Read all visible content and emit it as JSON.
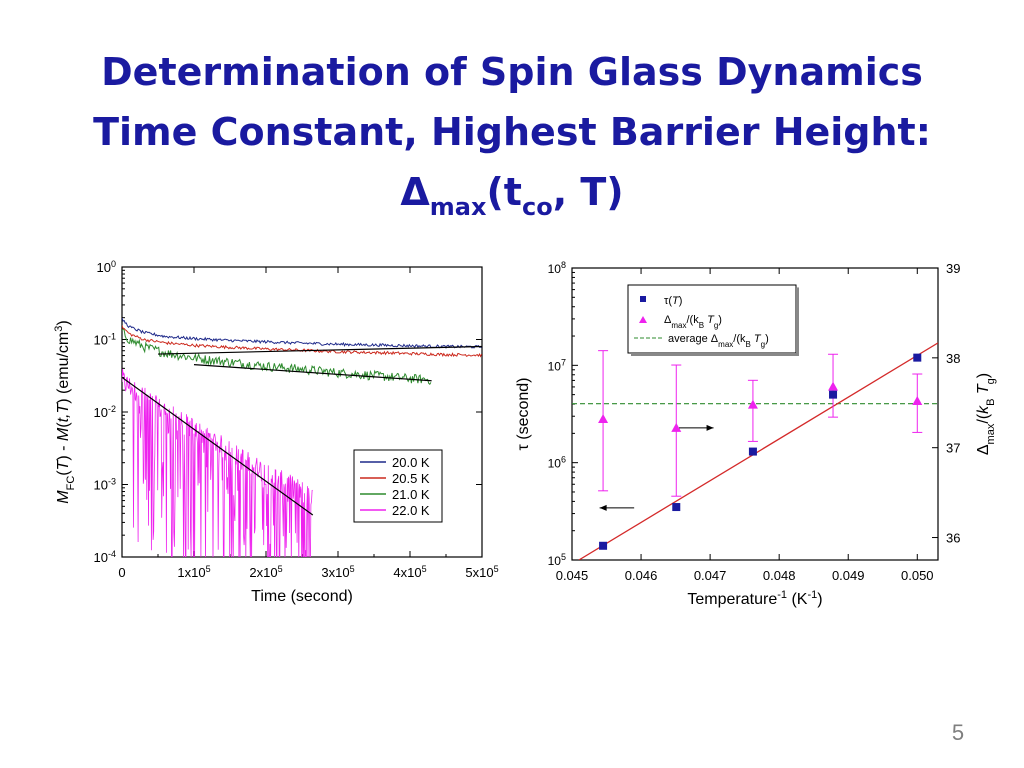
{
  "slide": {
    "title_line1": "Determination of Spin Glass Dynamics",
    "title_line2": "Time Constant,  Highest Barrier Height:",
    "title_line3_delta": "Δ",
    "title_line3_sub1": "max",
    "title_line3_mid": "(t",
    "title_line3_sub2": "co",
    "title_line3_end": ", T)",
    "slide_number": "5"
  },
  "colors": {
    "title": "#1a1aa0",
    "slide_number": "#7f7f7f"
  },
  "chart_data": [
    {
      "type": "line",
      "xlabel": "Time (second)",
      "ylabel": "M_FC(T) - M(t,T) (emu/cm^3)",
      "ylabel_parts": {
        "m1": "M",
        "fc": "FC",
        "p1": "(",
        "t1": "T",
        "p2": ") - ",
        "m2": "M",
        "p3": "(",
        "t2": "t,T",
        "p4": ")  (emu/cm",
        "exp": "3",
        "p5": ")"
      },
      "y_scale": "log",
      "xlim": [
        0,
        500000
      ],
      "ylim": [
        0.0001,
        1
      ],
      "x_ticks": [
        {
          "value": 0,
          "base": "0",
          "exp": ""
        },
        {
          "value": 100000,
          "base": "1x10",
          "exp": "5"
        },
        {
          "value": 200000,
          "base": "2x10",
          "exp": "5"
        },
        {
          "value": 300000,
          "base": "3x10",
          "exp": "5"
        },
        {
          "value": 400000,
          "base": "4x10",
          "exp": "5"
        },
        {
          "value": 500000,
          "base": "5x10",
          "exp": "5"
        }
      ],
      "y_ticks": [
        {
          "value": 1,
          "exp": "0"
        },
        {
          "value": 0.1,
          "exp": "-1"
        },
        {
          "value": 0.01,
          "exp": "-2"
        },
        {
          "value": 0.001,
          "exp": "-3"
        },
        {
          "value": 0.0001,
          "exp": "-4"
        }
      ],
      "legend_position": "lower-right",
      "series": [
        {
          "name": "20.0 K",
          "color": "#1f2a8a",
          "noise": "low",
          "x": [
            0,
            10000,
            30000,
            60000,
            100000,
            150000,
            200000,
            250000,
            300000,
            350000,
            400000,
            450000,
            500000
          ],
          "y": [
            0.19,
            0.15,
            0.125,
            0.11,
            0.103,
            0.097,
            0.093,
            0.089,
            0.086,
            0.084,
            0.082,
            0.08,
            0.079
          ]
        },
        {
          "name": "20.5 K",
          "color": "#cc2a1e",
          "noise": "low",
          "x": [
            0,
            10000,
            30000,
            60000,
            100000,
            150000,
            200000,
            250000,
            300000,
            350000,
            400000,
            450000,
            500000
          ],
          "y": [
            0.15,
            0.12,
            0.1,
            0.09,
            0.083,
            0.078,
            0.074,
            0.071,
            0.068,
            0.066,
            0.064,
            0.062,
            0.061
          ]
        },
        {
          "name": "21.0 K",
          "color": "#2e8b2e",
          "noise": "medium",
          "x": [
            0,
            10000,
            30000,
            60000,
            100000,
            150000,
            200000,
            250000,
            300000,
            350000,
            400000,
            430000
          ],
          "y": [
            0.13,
            0.1,
            0.08,
            0.066,
            0.056,
            0.049,
            0.043,
            0.039,
            0.035,
            0.032,
            0.029,
            0.028
          ]
        },
        {
          "name": "22.0 K",
          "color": "#ee22ee",
          "noise": "high",
          "x": [
            0,
            5000,
            20000,
            50000,
            100000,
            150000,
            200000,
            265000
          ],
          "y": [
            0.03,
            0.025,
            0.02,
            0.012,
            0.006,
            0.003,
            0.0015,
            0.0007
          ]
        }
      ],
      "fits": [
        {
          "x": [
            50000,
            500000
          ],
          "y": [
            0.063,
            0.08
          ],
          "color": "#000000"
        },
        {
          "x": [
            100000,
            430000
          ],
          "y": [
            0.045,
            0.027
          ],
          "color": "#000000"
        },
        {
          "x": [
            0,
            265000
          ],
          "y": [
            0.03,
            0.00038
          ],
          "color": "#000000"
        }
      ]
    },
    {
      "type": "scatter",
      "xlabel_base": "Temperature",
      "xlabel_exp": "-1",
      "xlabel_unit": " (K",
      "xlabel_unit_exp": "-1",
      "xlabel_close": ")",
      "ylabel": "τ (second)",
      "y2label_parts": {
        "delta": "Δ",
        "sub": "max",
        "rest1": "/(",
        "k": "k",
        "b": "B",
        "space": " ",
        "t": "T",
        "g": "g",
        "close": ")"
      },
      "y_scale": "log",
      "xlim": [
        0.045,
        0.0503
      ],
      "ylim": [
        100000,
        100000000
      ],
      "y2lim": [
        35.75,
        39
      ],
      "x_ticks": [
        "0.045",
        "0.046",
        "0.047",
        "0.048",
        "0.049",
        "0.050"
      ],
      "y_ticks": [
        {
          "value": 100000,
          "exp": "5"
        },
        {
          "value": 1000000,
          "exp": "6"
        },
        {
          "value": 10000000,
          "exp": "7"
        },
        {
          "value": 100000000,
          "exp": "8"
        }
      ],
      "y2_ticks": [
        "36",
        "37",
        "38",
        "39"
      ],
      "legend_position": "top-left",
      "legend": {
        "tau_label": "τ(",
        "tau_t": "T",
        "tau_close": ")",
        "delta_label": "Δ",
        "delta_sub": "max",
        "delta_rest": "/(k",
        "delta_b": "B",
        "delta_t": " T",
        "delta_g": "g",
        "delta_close": ")",
        "avg_label": "average Δ",
        "avg_sub": "max",
        "avg_rest": "/(k",
        "avg_b": "B",
        "avg_t": " T",
        "avg_g": "g",
        "avg_close": ")"
      },
      "series": [
        {
          "name": "τ(T)",
          "color": "#1a1aa0",
          "marker": "square",
          "x": [
            0.04545,
            0.04651,
            0.04762,
            0.04878,
            0.05
          ],
          "y": [
            140000,
            350000,
            1300000,
            5000000,
            12000000
          ]
        },
        {
          "name": "Δmax/(kB Tg)",
          "color": "#ee22ee",
          "marker": "triangle",
          "axis": "right",
          "x": [
            0.04545,
            0.04651,
            0.04762,
            0.04878,
            0.05
          ],
          "y": [
            37.32,
            37.22,
            37.48,
            37.68,
            37.52
          ],
          "err_low": [
            36.52,
            36.46,
            37.07,
            37.34,
            37.17
          ],
          "err_high": [
            38.08,
            37.92,
            37.75,
            38.04,
            37.82
          ]
        }
      ],
      "fit_line": {
        "x": [
          0.0451,
          0.0503
        ],
        "y": [
          100000,
          17000000
        ],
        "color": "#d42a2a"
      },
      "average_line": {
        "y": 37.49,
        "color": "#2e8b2e"
      },
      "annotations": [
        {
          "type": "arrow-left",
          "x": [
            0.0459,
            0.0454
          ],
          "y_right": 36.33
        },
        {
          "type": "arrow-right",
          "x": [
            0.04655,
            0.04705
          ],
          "y_right": 37.22
        }
      ]
    }
  ]
}
